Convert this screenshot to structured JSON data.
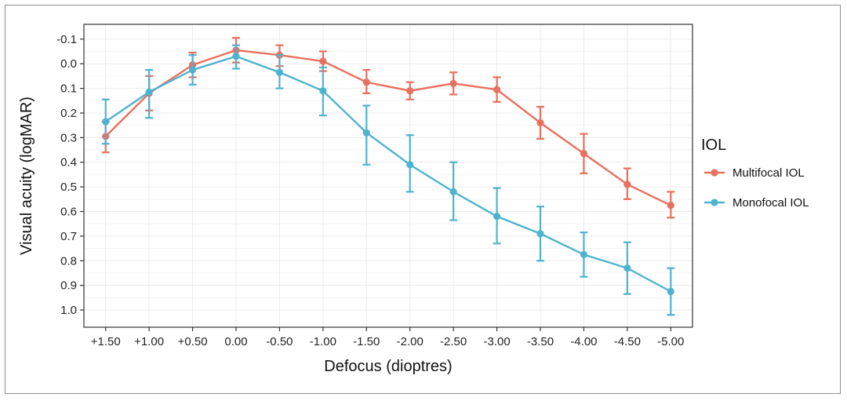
{
  "chart_data": {
    "type": "line",
    "title": "",
    "xlabel": "Defocus (dioptres)",
    "ylabel": "Visual acuity (logMAR)",
    "x_categories": [
      "+1.50",
      "+1.00",
      "+0.50",
      "0.00",
      "-0.50",
      "-1.00",
      "-1.50",
      "-2.00",
      "-2.50",
      "-3.00",
      "-3.50",
      "-4.00",
      "-4.50",
      "-5.00"
    ],
    "y_ticks": [
      -0.1,
      0.0,
      0.1,
      0.2,
      0.3,
      0.4,
      0.5,
      0.6,
      0.7,
      0.8,
      0.9,
      1.0
    ],
    "y_tick_labels": [
      "-0.1",
      "0.0",
      "0.1",
      "0.2",
      "0.3",
      "0.4",
      "0.5",
      "0.6",
      "0.7",
      "0.8",
      "0.9",
      "1.0"
    ],
    "ylim": [
      -0.16,
      1.07
    ],
    "y_inverted": true,
    "grid": true,
    "legend": {
      "title": "IOL",
      "position": "right"
    },
    "series": [
      {
        "name": "Multifocal IOL",
        "color": "#e8705f",
        "values": [
          0.295,
          0.12,
          0.005,
          -0.055,
          -0.035,
          -0.01,
          0.075,
          0.11,
          0.08,
          0.105,
          0.24,
          0.365,
          0.49,
          0.575
        ],
        "err_low": [
          0.235,
          0.05,
          -0.045,
          -0.105,
          -0.075,
          -0.05,
          0.025,
          0.075,
          0.035,
          0.055,
          0.175,
          0.285,
          0.425,
          0.52
        ],
        "err_high": [
          0.36,
          0.19,
          0.055,
          -0.005,
          0.01,
          0.03,
          0.12,
          0.145,
          0.125,
          0.155,
          0.305,
          0.445,
          0.55,
          0.625
        ]
      },
      {
        "name": "Monofocal IOL",
        "color": "#4fb3cf",
        "values": [
          0.235,
          0.115,
          0.025,
          -0.03,
          0.035,
          0.11,
          0.28,
          0.41,
          0.52,
          0.62,
          0.69,
          0.775,
          0.83,
          0.925
        ],
        "err_low": [
          0.145,
          0.025,
          -0.035,
          -0.075,
          -0.035,
          0.015,
          0.17,
          0.29,
          0.4,
          0.505,
          0.58,
          0.685,
          0.725,
          0.83
        ],
        "err_high": [
          0.325,
          0.22,
          0.085,
          0.02,
          0.1,
          0.21,
          0.41,
          0.52,
          0.635,
          0.73,
          0.8,
          0.865,
          0.935,
          1.02
        ]
      }
    ]
  }
}
